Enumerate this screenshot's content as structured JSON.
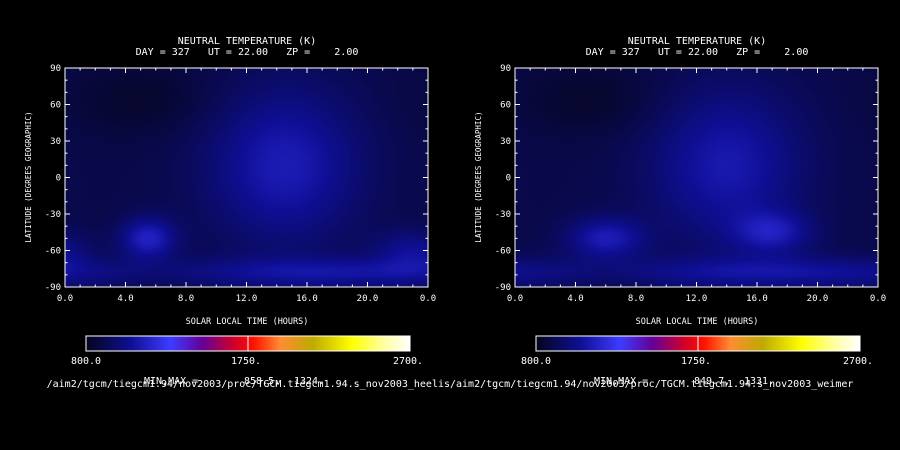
{
  "chart_data": [
    {
      "type": "heatmap",
      "title": "NEUTRAL TEMPERATURE (K)",
      "subtitle": "DAY = 327   UT = 22.00   ZP =    2.00",
      "xlabel": "SOLAR LOCAL TIME (HOURS)",
      "ylabel": "LATITUDE (DEGREES GEOGRAPHIC)",
      "xlim": [
        0,
        24
      ],
      "ylim": [
        -90,
        90
      ],
      "x_ticks": [
        "0.0",
        "4.0",
        "8.0",
        "12.0",
        "16.0",
        "20.0",
        "0.0"
      ],
      "y_ticks": [
        "90",
        "60",
        "30",
        "0",
        "-30",
        "-60",
        "-90"
      ],
      "colorbar": {
        "min_label": "800.0",
        "mid_label": "1750.",
        "max_label": "2700.",
        "range": [
          800,
          2700
        ]
      },
      "minmax": {
        "label": "MIN,MAX =",
        "min": "858.5,",
        "max": "1324."
      },
      "path": "/aim2/tgcm/tiegcm1.94/nov2003/proc/TGCM.tiegcm1.94.s_nov2003_heelis",
      "field": {
        "base": 900,
        "features": [
          {
            "x": 14.5,
            "y": 10,
            "sx": 3.5,
            "sy": 45,
            "amp": 230
          },
          {
            "x": 5.5,
            "y": -50,
            "sx": 1.3,
            "sy": 12,
            "amp": 260
          },
          {
            "x": 18.0,
            "y": -78,
            "sx": 9.0,
            "sy": 9,
            "amp": 180
          },
          {
            "x": 5.0,
            "y": 65,
            "sx": 3.5,
            "sy": 22,
            "amp": -60
          },
          {
            "x": 23.0,
            "y": -60,
            "sx": 1.8,
            "sy": 12,
            "amp": 150
          }
        ]
      }
    },
    {
      "type": "heatmap",
      "title": "NEUTRAL TEMPERATURE (K)",
      "subtitle": "DAY = 327   UT = 22.00   ZP =    2.00",
      "xlabel": "SOLAR LOCAL TIME (HOURS)",
      "ylabel": "LATITUDE (DEGREES GEOGRAPHIC)",
      "xlim": [
        0,
        24
      ],
      "ylim": [
        -90,
        90
      ],
      "x_ticks": [
        "0.0",
        "4.0",
        "8.0",
        "12.0",
        "16.0",
        "20.0",
        "0.0"
      ],
      "y_ticks": [
        "90",
        "60",
        "30",
        "0",
        "-30",
        "-60",
        "-90"
      ],
      "colorbar": {
        "min_label": "800.0",
        "mid_label": "1750.",
        "max_label": "2700.",
        "range": [
          800,
          2700
        ]
      },
      "minmax": {
        "label": "MIN,MAX =",
        "min": "849.7,",
        "max": "1331."
      },
      "path": "/aim2/tgcm/tiegcm1.94/nov2003/proc/TGCM.tiegcm1.94.s_nov2003_weimer",
      "field": {
        "base": 900,
        "features": [
          {
            "x": 14.0,
            "y": 10,
            "sx": 3.5,
            "sy": 45,
            "amp": 215
          },
          {
            "x": 6.0,
            "y": -50,
            "sx": 1.8,
            "sy": 12,
            "amp": 230
          },
          {
            "x": 17.0,
            "y": -45,
            "sx": 1.8,
            "sy": 12,
            "amp": 200
          },
          {
            "x": 18.0,
            "y": -78,
            "sx": 9.0,
            "sy": 9,
            "amp": 180
          },
          {
            "x": 5.0,
            "y": 65,
            "sx": 3.5,
            "sy": 22,
            "amp": -60
          }
        ]
      }
    }
  ]
}
